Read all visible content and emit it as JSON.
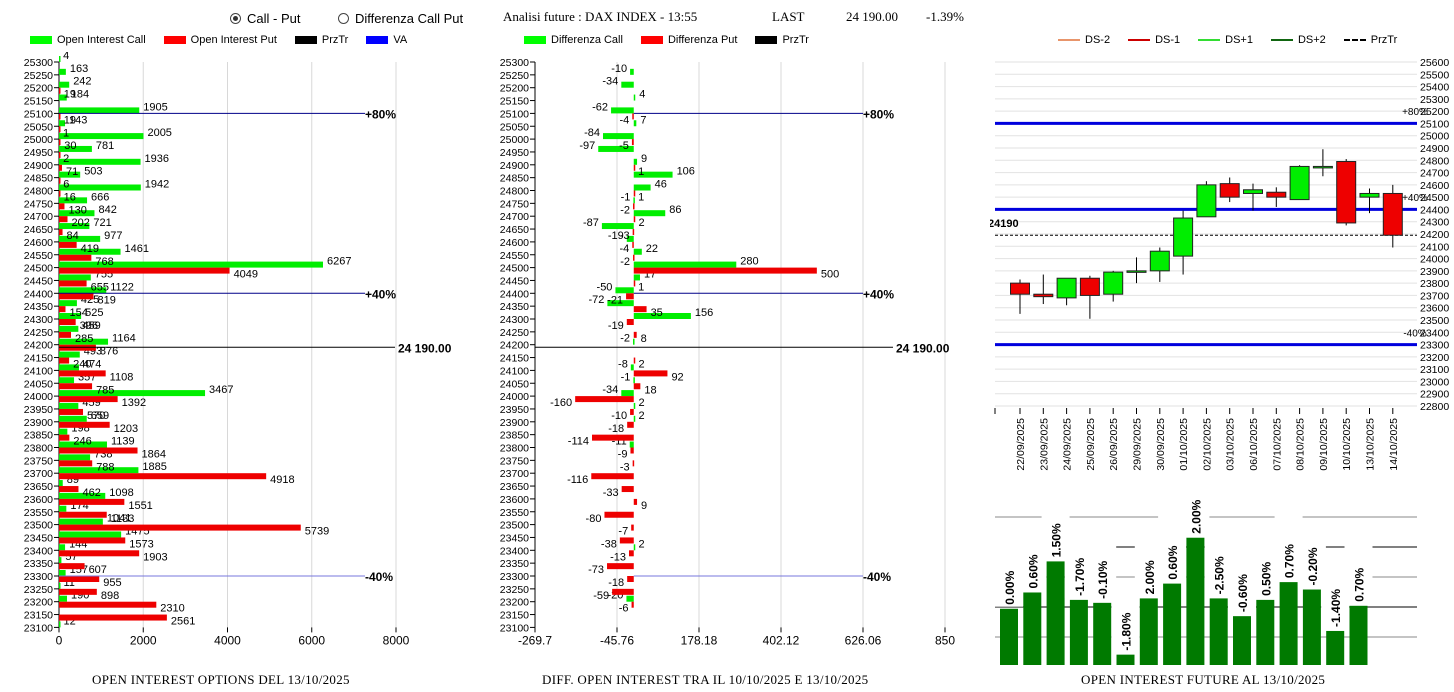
{
  "header": {
    "radio_options": [
      {
        "label": "Call - Put",
        "selected": true
      },
      {
        "label": "Differenza Call Put",
        "selected": false
      }
    ],
    "title": "Analisi future : DAX INDEX - 13:55",
    "last_label": "LAST",
    "last_value": "24 190.00",
    "change": "-1.39%"
  },
  "colors": {
    "call": "#00ff00",
    "put": "#ff0000",
    "przTr": "#000000",
    "va": "#0000ff",
    "future_bar": "#008000",
    "ds_minus2": "#e8956b",
    "ds_minus1": "#cc0000",
    "ds_plus1": "#33dd33",
    "ds_plus2": "#116611"
  },
  "chart_data": [
    {
      "type": "bar",
      "orientation": "horizontal",
      "title": "OPEN INTEREST OPTIONS DEL 13/10/2025",
      "legend": [
        "Open Interest Call",
        "Open Interest Put",
        "PrzTr",
        "VA"
      ],
      "legend_placement": "top",
      "xlim": [
        0,
        8000
      ],
      "xticks": [
        "0",
        "2000",
        "4000",
        "6000",
        "8000"
      ],
      "grid": true,
      "categories": [
        25300,
        25250,
        25200,
        25150,
        25100,
        25050,
        25000,
        24950,
        24900,
        24850,
        24800,
        24750,
        24700,
        24650,
        24600,
        24550,
        24500,
        24450,
        24400,
        24350,
        24300,
        24250,
        24200,
        24150,
        24100,
        24050,
        24000,
        23950,
        23900,
        23850,
        23800,
        23750,
        23700,
        23650,
        23600,
        23550,
        23500,
        23450,
        23400,
        23350,
        23300,
        23250,
        23200,
        23150,
        23100
      ],
      "series": [
        {
          "name": "Open Interest Call",
          "values": [
            4,
            163,
            242,
            184,
            1905,
            143,
            2005,
            781,
            1936,
            503,
            1942,
            666,
            842,
            721,
            977,
            1461,
            6267,
            755,
            1122,
            425,
            525,
            459,
            1164,
            493,
            474,
            357,
            3467,
            459,
            659,
            198,
            1139,
            738,
            1885,
            89,
            1098,
            174,
            1041,
            1475,
            144,
            57,
            157,
            11,
            190,
            0,
            12
          ]
        },
        {
          "name": "Open Interest Put",
          "values": [
            0,
            0,
            19,
            0,
            19,
            1,
            30,
            2,
            71,
            6,
            16,
            130,
            202,
            84,
            419,
            768,
            4049,
            655,
            819,
            154,
            396,
            285,
            876,
            240,
            1108,
            785,
            1392,
            570,
            1203,
            246,
            1864,
            788,
            4918,
            462,
            1551,
            1133,
            5739,
            1573,
            1903,
            607,
            955,
            898,
            2310,
            2561,
            0
          ]
        }
      ],
      "reference_lines": [
        {
          "label": "+80%",
          "strike": 25100,
          "kind": "VA"
        },
        {
          "label": "+40%",
          "strike": 24400,
          "kind": "VA"
        },
        {
          "label": "24 190.00",
          "strike": 24190,
          "kind": "PrzTr"
        },
        {
          "label": "-40%",
          "strike": 23300,
          "kind": "VA"
        }
      ]
    },
    {
      "type": "bar",
      "orientation": "horizontal",
      "title": "DIFF. OPEN INTEREST TRA IL 10/10/2025 E 13/10/2025",
      "legend": [
        "Differenza Call",
        "Differenza Put",
        "PrzTr"
      ],
      "legend_placement": "top",
      "xlim": [
        -269.7,
        850
      ],
      "xticks": [
        "-269.7",
        "-45.76",
        "178.18",
        "402.12",
        "626.06",
        "850"
      ],
      "grid": true,
      "categories": [
        25300,
        25250,
        25200,
        25150,
        25100,
        25050,
        25000,
        24950,
        24900,
        24850,
        24800,
        24750,
        24700,
        24650,
        24600,
        24550,
        24500,
        24450,
        24400,
        24350,
        24300,
        24250,
        24200,
        24150,
        24100,
        24050,
        24000,
        23950,
        23900,
        23850,
        23800,
        23750,
        23700,
        23650,
        23600,
        23550,
        23500,
        23450,
        23400,
        23350,
        23300,
        23250,
        23200,
        23150,
        23100
      ],
      "series": [
        {
          "name": "Differenza Call",
          "values": [
            null,
            -10,
            -34,
            4,
            -62,
            7,
            -84,
            -97,
            9,
            106,
            46,
            -1,
            86,
            -87,
            -19,
            22,
            280,
            17,
            -50,
            -72,
            156,
            null,
            -2,
            null,
            -8,
            -1,
            -34,
            2,
            2,
            null,
            -11,
            null,
            null,
            null,
            null,
            null,
            null,
            null,
            2,
            null,
            null,
            null,
            -20,
            null,
            null
          ]
        },
        {
          "name": "Differenza Put",
          "values": [
            null,
            null,
            null,
            null,
            -4,
            null,
            -5,
            null,
            1,
            null,
            1,
            -2,
            2,
            -3,
            -4,
            -2,
            500,
            1,
            -21,
            35,
            -19,
            8,
            null,
            2,
            92,
            18,
            -160,
            -10,
            -18,
            -114,
            -9,
            -3,
            -116,
            -33,
            9,
            -80,
            -7,
            -38,
            -13,
            -73,
            -18,
            -59,
            -6,
            null,
            null
          ]
        }
      ],
      "reference_lines": [
        {
          "label": "+80%",
          "strike": 25100,
          "kind": "VA"
        },
        {
          "label": "+40%",
          "strike": 24400,
          "kind": "VA"
        },
        {
          "label": "24 190.00",
          "strike": 24190,
          "kind": "PrzTr"
        },
        {
          "label": "-40%",
          "strike": 23300,
          "kind": "VA"
        }
      ]
    },
    {
      "type": "candlestick",
      "legend": [
        "DS-2",
        "DS-1",
        "DS+1",
        "DS+2",
        "PrzTr"
      ],
      "legend_placement": "top",
      "ylim": [
        22800,
        25600
      ],
      "yticks": [
        25600,
        25500,
        25400,
        25300,
        25200,
        25100,
        25000,
        24900,
        24800,
        24700,
        24600,
        24500,
        24400,
        24300,
        24200,
        24100,
        24000,
        23900,
        23800,
        23700,
        23600,
        23500,
        23400,
        23300,
        23200,
        23100,
        23000,
        22900,
        22800
      ],
      "grid": true,
      "price_label": "24190",
      "price_line": 24190,
      "levels": [
        {
          "label": "+80%",
          "value": 25100
        },
        {
          "label": "+40%",
          "value": 24400
        },
        {
          "label": "-40%",
          "value": 23300
        }
      ],
      "categories": [
        "22/09/2025",
        "23/09/2025",
        "24/09/2025",
        "25/09/2025",
        "26/09/2025",
        "29/09/2025",
        "30/09/2025",
        "01/10/2025",
        "02/10/2025",
        "03/10/2025",
        "06/10/2025",
        "07/10/2025",
        "08/10/2025",
        "09/10/2025",
        "10/10/2025",
        "13/10/2025",
        "14/10/2025"
      ],
      "candles": [
        {
          "open": 23800,
          "high": 23830,
          "low": 23550,
          "close": 23710
        },
        {
          "open": 23710,
          "high": 23870,
          "low": 23630,
          "close": 23690
        },
        {
          "open": 23680,
          "high": 23830,
          "low": 23620,
          "close": 23840
        },
        {
          "open": 23840,
          "high": 23860,
          "low": 23510,
          "close": 23700
        },
        {
          "open": 23710,
          "high": 23900,
          "low": 23650,
          "close": 23890
        },
        {
          "open": 23900,
          "high": 24010,
          "low": 23800,
          "close": 23900
        },
        {
          "open": 23900,
          "high": 24090,
          "low": 23810,
          "close": 24060
        },
        {
          "open": 24020,
          "high": 24390,
          "low": 23870,
          "close": 24330
        },
        {
          "open": 24340,
          "high": 24630,
          "low": 24340,
          "close": 24600
        },
        {
          "open": 24610,
          "high": 24660,
          "low": 24460,
          "close": 24500
        },
        {
          "open": 24530,
          "high": 24610,
          "low": 24390,
          "close": 24560
        },
        {
          "open": 24540,
          "high": 24580,
          "low": 24420,
          "close": 24500
        },
        {
          "open": 24480,
          "high": 24760,
          "low": 24480,
          "close": 24750
        },
        {
          "open": 24740,
          "high": 24890,
          "low": 24670,
          "close": 24750
        },
        {
          "open": 24790,
          "high": 24810,
          "low": 24270,
          "close": 24290
        },
        {
          "open": 24500,
          "high": 24570,
          "low": 24370,
          "close": 24530
        },
        {
          "open": 24530,
          "high": 24600,
          "low": 24090,
          "close": 24190
        }
      ]
    },
    {
      "type": "bar",
      "title": "OPEN INTEREST FUTURE AL 13/10/2025",
      "grid": true,
      "categories": [
        "22/09/2025",
        "23/09/2025",
        "24/09/2025",
        "25/09/2025",
        "26/09/2025",
        "29/09/2025",
        "30/09/2025",
        "01/10/2025",
        "02/10/2025",
        "03/10/2025",
        "06/10/2025",
        "07/10/2025",
        "08/10/2025",
        "09/10/2025",
        "10/10/2025",
        "13/10/2025"
      ],
      "data_labels": [
        "0.00%",
        "0.60%",
        "1.50%",
        "-1.70%",
        "-0.10%",
        "-1.80%",
        "2.00%",
        "0.60%",
        "2.00%",
        "-2.50%",
        "-0.60%",
        "0.50%",
        "0.70%",
        "-0.20%",
        "-1.40%",
        "0.70%"
      ],
      "relative_values": [
        0.38,
        0.49,
        0.7,
        0.44,
        0.42,
        0.07,
        0.45,
        0.55,
        0.86,
        0.45,
        0.33,
        0.44,
        0.56,
        0.51,
        0.23,
        0.4
      ]
    }
  ]
}
